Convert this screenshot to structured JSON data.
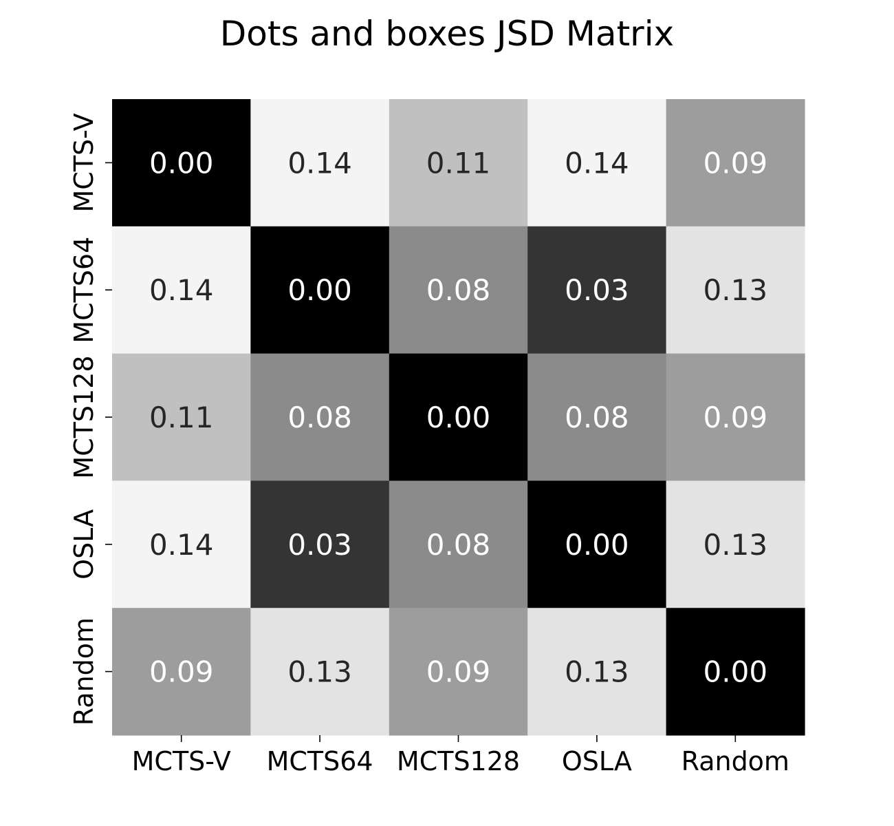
{
  "chart_data": {
    "type": "heatmap",
    "title": "Dots and boxes JSD Matrix",
    "x_labels": [
      "MCTS-V",
      "MCTS64",
      "MCTS128",
      "OSLA",
      "Random"
    ],
    "y_labels": [
      "MCTS-V",
      "MCTS64",
      "MCTS128",
      "OSLA",
      "Random"
    ],
    "values": [
      [
        0.0,
        0.14,
        0.11,
        0.14,
        0.09
      ],
      [
        0.14,
        0.0,
        0.08,
        0.03,
        0.13
      ],
      [
        0.11,
        0.08,
        0.0,
        0.08,
        0.09
      ],
      [
        0.14,
        0.03,
        0.08,
        0.0,
        0.13
      ],
      [
        0.09,
        0.13,
        0.09,
        0.13,
        0.0
      ]
    ],
    "value_format": "0.00",
    "colormap": "gray",
    "colorbar": false,
    "colors": {
      "low": "#000000",
      "high": "#f4f4f4",
      "text_dark": "#262626",
      "text_light": "#ffffff"
    }
  }
}
